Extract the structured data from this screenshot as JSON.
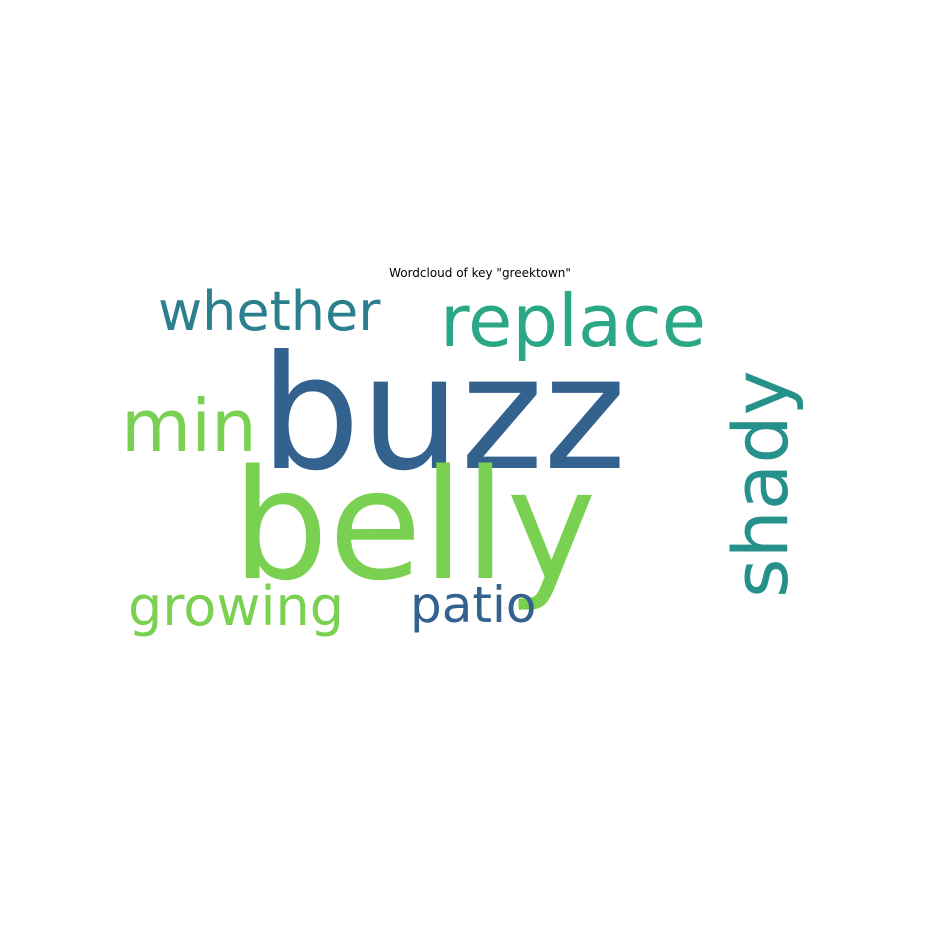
{
  "chart_data": {
    "type": "wordcloud",
    "title": "Wordcloud of key \"greektown\"",
    "colors": {
      "dark_blue": "#34628e",
      "light_green": "#7ad151",
      "teal": "#2aa784",
      "blue_teal": "#2c7f8e",
      "cyan_teal": "#26918b"
    },
    "words": [
      {
        "text": "buzz",
        "color": "#34628e",
        "orientation": "horizontal"
      },
      {
        "text": "belly",
        "color": "#7ad151",
        "orientation": "horizontal"
      },
      {
        "text": "replace",
        "color": "#2aa784",
        "orientation": "horizontal"
      },
      {
        "text": "whether",
        "color": "#2c7f8e",
        "orientation": "horizontal"
      },
      {
        "text": "min",
        "color": "#7ad151",
        "orientation": "horizontal"
      },
      {
        "text": "shady",
        "color": "#26918b",
        "orientation": "vertical"
      },
      {
        "text": "growing",
        "color": "#7ad151",
        "orientation": "horizontal"
      },
      {
        "text": "patio",
        "color": "#34628e",
        "orientation": "horizontal"
      }
    ]
  }
}
